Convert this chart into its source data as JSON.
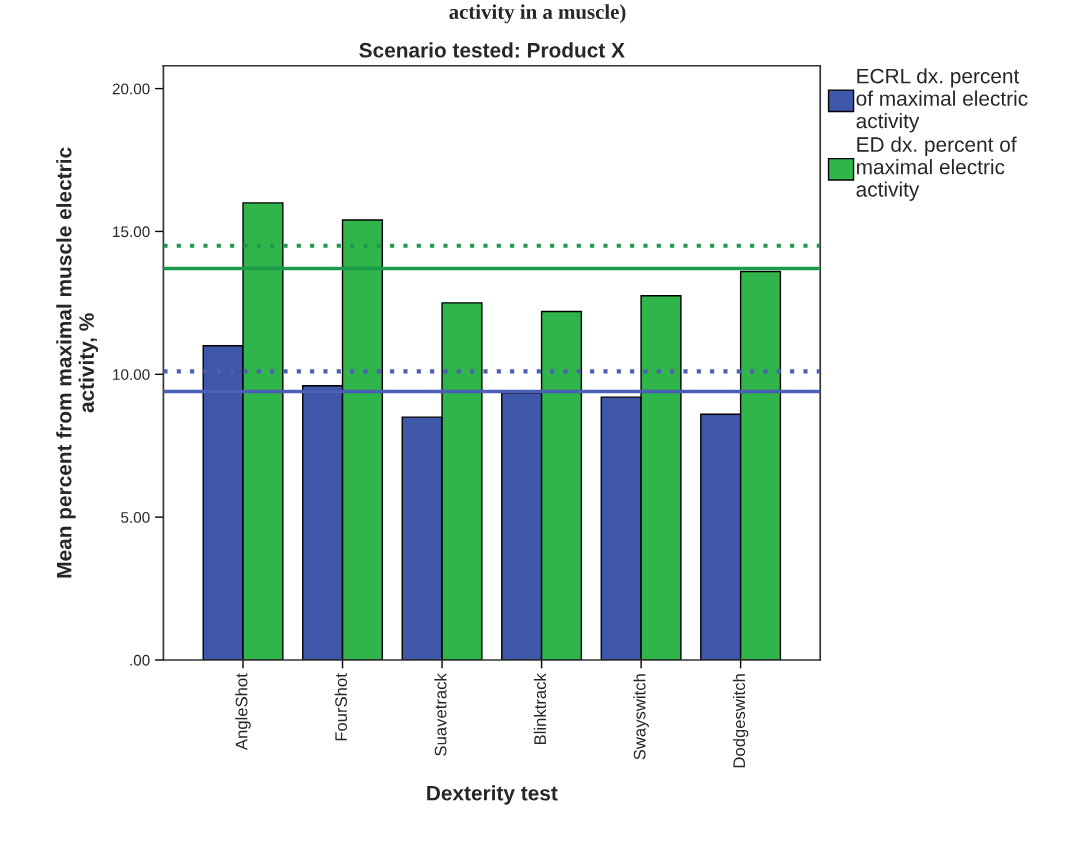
{
  "chart_data": {
    "type": "bar",
    "title": "Scenario tested: Product X",
    "xlabel": "Dexterity test",
    "ylabel": "Mean percent from maximal muscle electric\nactivity, %",
    "annotations": [
      "activity in a muscle)"
    ],
    "categories": [
      "AngleShot",
      "FourShot",
      "Suavetrack",
      "Blinktrack",
      "Swayswitch",
      "Dodgeswitch"
    ],
    "series": [
      {
        "name": "ECRL dx. percent\nof maximal electric\nactivity",
        "color": "#3f57a8",
        "values": [
          11.0,
          9.6,
          8.5,
          9.35,
          9.2,
          8.6
        ]
      },
      {
        "name": "ED dx. percent of\nmaximal electric\nactivity",
        "color": "#2fb54a",
        "values": [
          16.0,
          15.4,
          12.5,
          12.2,
          12.75,
          13.6
        ]
      }
    ],
    "ylim": [
      0,
      20.8
    ],
    "yticks": [
      {
        "value": 0,
        "label": ".00"
      },
      {
        "value": 5,
        "label": "5.00"
      },
      {
        "value": 10,
        "label": "10.00"
      },
      {
        "value": 15,
        "label": "15.00"
      },
      {
        "value": 20,
        "label": "20.00"
      }
    ],
    "ref_lines": [
      {
        "axis": "y",
        "value": 14.5,
        "color": "#1c9a4c",
        "line_style": "dotted"
      },
      {
        "axis": "y",
        "value": 13.7,
        "color": "#1c9a4c",
        "line_style": "solid"
      },
      {
        "axis": "y",
        "value": 10.1,
        "color": "#4a5fb5",
        "line_style": "dotted"
      },
      {
        "axis": "y",
        "value": 9.4,
        "color": "#4a5fb5",
        "line_style": "solid"
      }
    ],
    "grid": false,
    "legend": "top right"
  }
}
